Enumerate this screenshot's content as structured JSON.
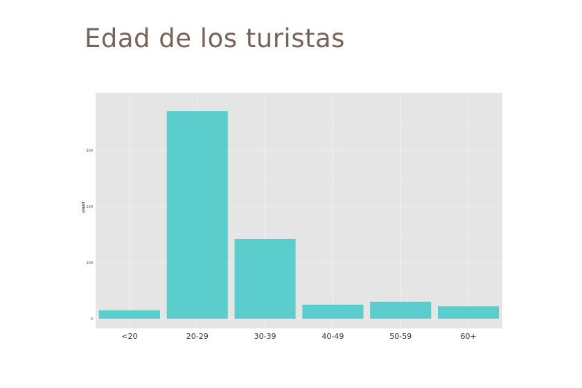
{
  "slide": {
    "title": "Edad de los turistas"
  },
  "chart_data": {
    "type": "bar",
    "categories": [
      "<20",
      "20-29",
      "30-39",
      "40-49",
      "50-59",
      "60+"
    ],
    "values": [
      15,
      370,
      142,
      25,
      30,
      22
    ],
    "ylabel": "count",
    "yticks": [
      0,
      100,
      200,
      300
    ],
    "ylim": [
      0,
      390
    ],
    "grid": true,
    "legend": "none",
    "colors": {
      "bar": "#5bcdcd",
      "panel": "#e5e5e5",
      "grid_major": "#f2f2f2",
      "grid_minor": "#ececec",
      "tick_text": "#5a5a5a",
      "axis_label": "#333333"
    }
  }
}
